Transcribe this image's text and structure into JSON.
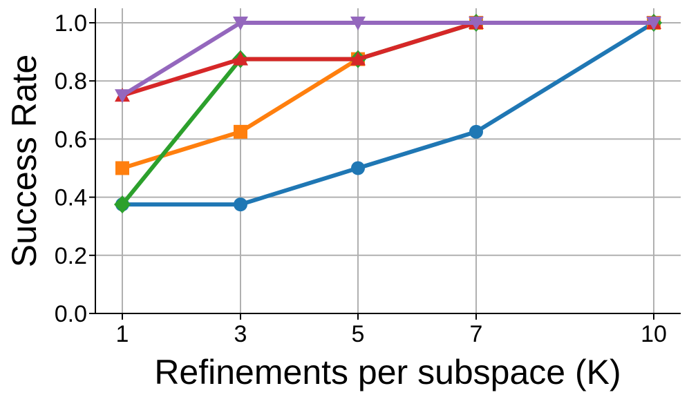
{
  "chart_data": {
    "type": "line",
    "xlabel": "Refinements per subspace (K)",
    "ylabel": "Success Rate",
    "x": [
      1,
      3,
      5,
      7,
      10
    ],
    "xticks": [
      "1",
      "3",
      "5",
      "7",
      "10"
    ],
    "yticks": [
      "0.0",
      "0.2",
      "0.4",
      "0.6",
      "0.8",
      "1.0"
    ],
    "ylim": [
      0,
      1.05
    ],
    "grid": true,
    "series": [
      {
        "color": "#1f77b4",
        "marker": "circle",
        "values": [
          0.375,
          0.375,
          0.5,
          0.625,
          1.0
        ]
      },
      {
        "color": "#ff7f0e",
        "marker": "square",
        "values": [
          0.5,
          0.625,
          0.875,
          1.0,
          1.0
        ]
      },
      {
        "color": "#2ca02c",
        "marker": "diamond",
        "values": [
          0.375,
          0.875,
          0.875,
          1.0,
          1.0
        ]
      },
      {
        "color": "#d62728",
        "marker": "triangle-up",
        "values": [
          0.75,
          0.875,
          0.875,
          1.0,
          1.0
        ]
      },
      {
        "color": "#9467bd",
        "marker": "triangle-down",
        "values": [
          0.75,
          1.0,
          1.0,
          1.0,
          1.0
        ]
      }
    ]
  }
}
